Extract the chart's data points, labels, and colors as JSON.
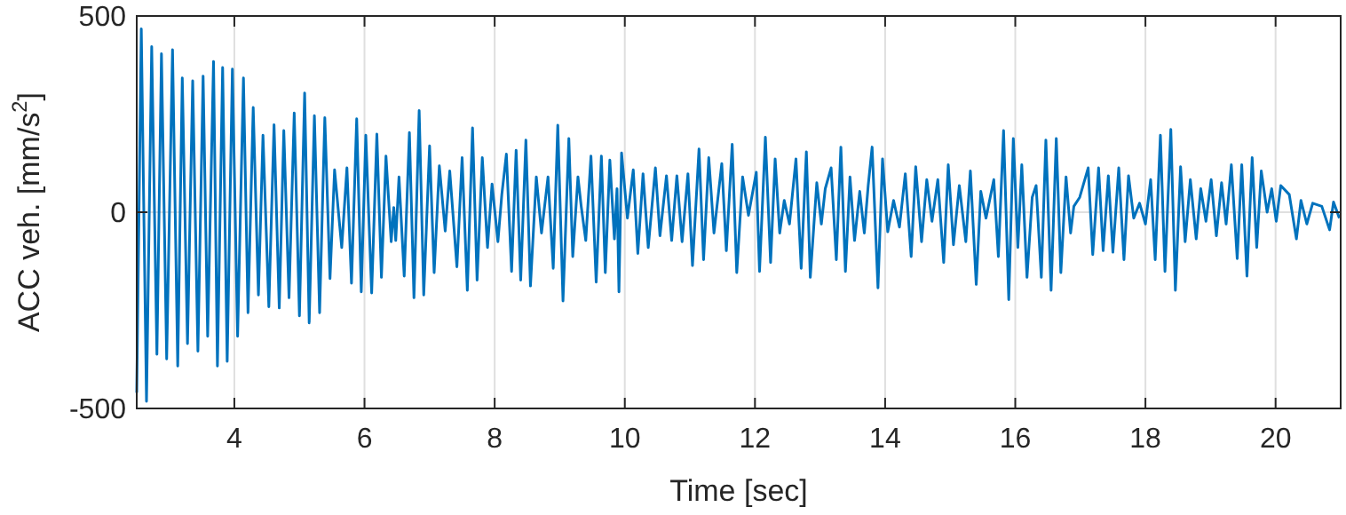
{
  "chart_data": {
    "type": "line",
    "xlabel": "Time [sec]",
    "ylabel": "ACC veh. [mm/s$^{2}$]",
    "xlim": [
      2.5,
      21
    ],
    "xticks": [
      4,
      6,
      8,
      10,
      12,
      14,
      16,
      18,
      20
    ],
    "ylim": [
      -500,
      500
    ],
    "yticks": [
      -500,
      0,
      500
    ],
    "grid": true,
    "line_style": "solid",
    "series": [
      {
        "color": "#0072bd",
        "x": [
          2.5,
          2.57,
          2.65,
          2.73,
          2.81,
          2.88,
          2.96,
          3.05,
          3.13,
          3.2,
          3.28,
          3.36,
          3.44,
          3.52,
          3.59,
          3.68,
          3.74,
          3.82,
          3.89,
          3.97,
          4.05,
          4.14,
          4.21,
          4.29,
          4.37,
          4.44,
          4.53,
          4.61,
          4.69,
          4.76,
          4.84,
          4.92,
          5.0,
          5.08,
          5.15,
          5.23,
          5.31,
          5.39,
          5.47,
          5.54,
          5.65,
          5.73,
          5.8,
          5.88,
          5.95,
          6.02,
          6.11,
          6.19,
          6.26,
          6.33,
          6.41,
          6.45,
          6.48,
          6.53,
          6.61,
          6.69,
          6.76,
          6.84,
          6.91,
          7.0,
          7.07,
          7.15,
          7.24,
          7.31,
          7.42,
          7.5,
          7.58,
          7.66,
          7.73,
          7.81,
          7.89,
          7.96,
          8.05,
          8.11,
          8.18,
          8.26,
          8.33,
          8.4,
          8.48,
          8.55,
          8.64,
          8.72,
          8.82,
          8.9,
          8.97,
          9.05,
          9.14,
          9.2,
          9.28,
          9.33,
          9.4,
          9.48,
          9.56,
          9.64,
          9.7,
          9.77,
          9.84,
          9.88,
          9.91,
          9.95,
          10.04,
          10.13,
          10.2,
          10.28,
          10.36,
          10.47,
          10.54,
          10.64,
          10.72,
          10.8,
          10.88,
          10.97,
          11.04,
          11.14,
          11.21,
          11.29,
          11.37,
          11.49,
          11.56,
          11.65,
          11.72,
          11.81,
          11.9,
          12.02,
          12.07,
          12.16,
          12.24,
          12.31,
          12.38,
          12.45,
          12.53,
          12.63,
          12.71,
          12.79,
          12.85,
          12.95,
          13.02,
          13.08,
          13.17,
          13.25,
          13.32,
          13.39,
          13.46,
          13.53,
          13.61,
          13.68,
          13.74,
          13.8,
          13.89,
          13.96,
          14.04,
          14.13,
          14.22,
          14.31,
          14.4,
          14.47,
          14.56,
          14.64,
          14.72,
          14.81,
          14.9,
          14.97,
          15.05,
          15.14,
          15.24,
          15.31,
          15.4,
          15.47,
          15.55,
          15.67,
          15.74,
          15.82,
          15.9,
          15.97,
          16.04,
          16.1,
          16.18,
          16.26,
          16.32,
          16.4,
          16.47,
          16.55,
          16.63,
          16.7,
          16.78,
          16.85,
          16.9,
          16.99,
          17.12,
          17.19,
          17.28,
          17.35,
          17.43,
          17.5,
          17.59,
          17.67,
          17.74,
          17.82,
          17.91,
          18.0,
          18.08,
          18.15,
          18.23,
          18.3,
          18.39,
          18.46,
          18.54,
          18.61,
          18.69,
          18.78,
          18.85,
          18.93,
          19.01,
          19.09,
          19.17,
          19.24,
          19.32,
          19.41,
          19.48,
          19.56,
          19.64,
          19.71,
          19.78,
          19.87,
          19.94,
          20.01,
          20.08,
          20.21,
          20.32,
          20.39,
          20.48,
          20.57,
          20.71,
          20.83,
          20.89,
          20.98
        ],
        "values": [
          -460,
          467,
          -482,
          422,
          -362,
          404,
          -374,
          414,
          -392,
          342,
          -335,
          335,
          -354,
          347,
          -316,
          384,
          -392,
          369,
          -380,
          365,
          -316,
          342,
          -256,
          267,
          -211,
          196,
          -241,
          223,
          -244,
          208,
          -218,
          253,
          -264,
          304,
          -282,
          246,
          -256,
          241,
          -169,
          108,
          -90,
          113,
          -181,
          238,
          -203,
          196,
          -206,
          199,
          -166,
          143,
          -75,
          12,
          -72,
          90,
          -163,
          203,
          -218,
          259,
          -211,
          169,
          -154,
          118,
          -48,
          105,
          -139,
          139,
          -199,
          215,
          -173,
          139,
          -90,
          72,
          -75,
          45,
          148,
          -151,
          158,
          -173,
          184,
          -188,
          90,
          -53,
          90,
          -143,
          222,
          -226,
          188,
          -113,
          90,
          15,
          -72,
          143,
          -178,
          143,
          -154,
          133,
          -68,
          60,
          -203,
          151,
          -15,
          108,
          -105,
          98,
          -90,
          113,
          -60,
          93,
          -72,
          93,
          -75,
          98,
          -136,
          161,
          -121,
          139,
          -53,
          124,
          -98,
          173,
          -154,
          90,
          -8,
          102,
          -151,
          191,
          -128,
          136,
          -53,
          30,
          -30,
          136,
          -143,
          154,
          -166,
          75,
          -30,
          60,
          113,
          -121,
          166,
          -151,
          90,
          -72,
          53,
          -53,
          68,
          166,
          -193,
          136,
          -50,
          30,
          -38,
          98,
          -113,
          116,
          -75,
          83,
          -23,
          83,
          -128,
          121,
          -83,
          68,
          -75,
          105,
          -184,
          53,
          -15,
          83,
          -113,
          208,
          -223,
          188,
          -90,
          121,
          -166,
          38,
          68,
          -166,
          184,
          -199,
          188,
          -154,
          90,
          -53,
          15,
          38,
          113,
          -108,
          113,
          -98,
          93,
          -102,
          113,
          -121,
          93,
          -15,
          23,
          -30,
          83,
          -121,
          196,
          -151,
          211,
          -199,
          116,
          -75,
          83,
          -68,
          60,
          -23,
          83,
          -60,
          75,
          -30,
          121,
          -118,
          121,
          -163,
          139,
          -90,
          105,
          0,
          60,
          -23,
          68,
          45,
          -68,
          30,
          -30,
          23,
          15,
          -45,
          26,
          -15
        ]
      }
    ]
  }
}
